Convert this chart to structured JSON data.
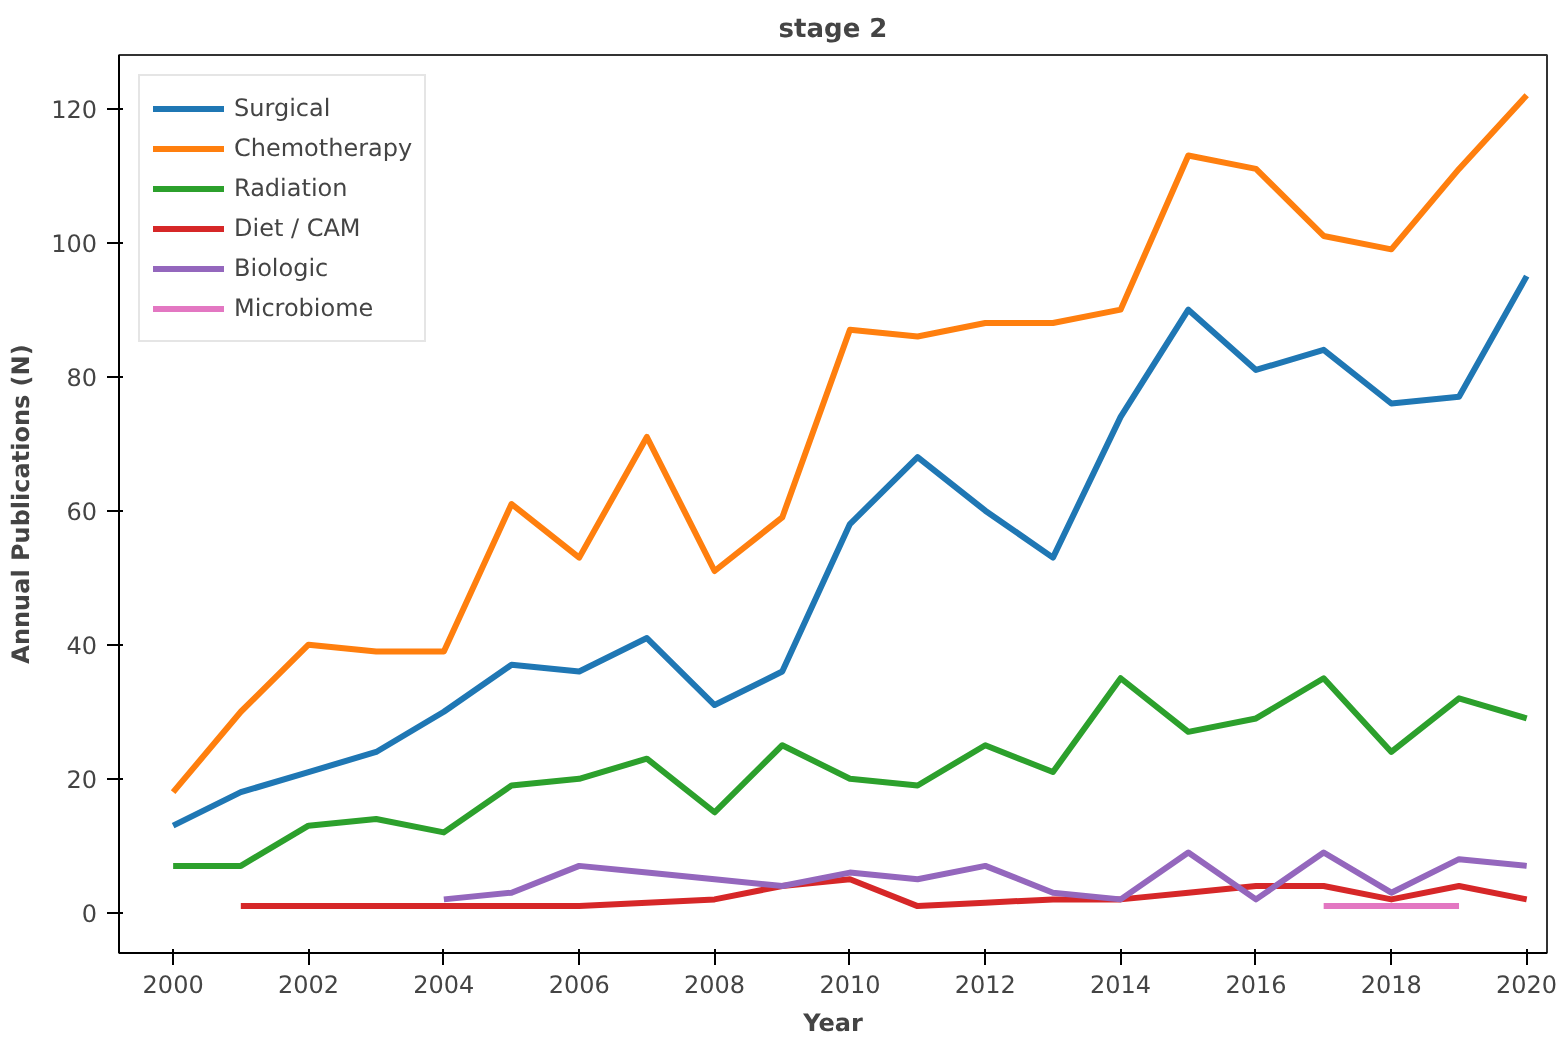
{
  "chart_data": {
    "type": "line",
    "title": "stage 2",
    "xlabel": "Year",
    "ylabel": "Annual Publications (N)",
    "x": [
      2000,
      2001,
      2002,
      2003,
      2004,
      2005,
      2006,
      2007,
      2008,
      2009,
      2010,
      2011,
      2012,
      2013,
      2014,
      2015,
      2016,
      2017,
      2018,
      2019,
      2020
    ],
    "series": [
      {
        "name": "Surgical",
        "color": "#1f77b4",
        "values": [
          13,
          18,
          21,
          24,
          30,
          37,
          36,
          41,
          31,
          36,
          58,
          68,
          60,
          53,
          74,
          90,
          81,
          84,
          76,
          77,
          95
        ]
      },
      {
        "name": "Chemotherapy",
        "color": "#ff7f0e",
        "values": [
          18,
          30,
          40,
          39,
          39,
          61,
          53,
          71,
          51,
          59,
          87,
          86,
          88,
          88,
          90,
          113,
          111,
          101,
          99,
          111,
          122
        ]
      },
      {
        "name": "Radiation",
        "color": "#2ca02c",
        "values": [
          7,
          7,
          13,
          14,
          12,
          19,
          20,
          23,
          15,
          25,
          20,
          19,
          25,
          21,
          35,
          27,
          29,
          35,
          24,
          32,
          29
        ]
      },
      {
        "name": "Diet / CAM",
        "color": "#d62728",
        "values": [
          null,
          1,
          1,
          1,
          1,
          1,
          1,
          1.5,
          2,
          4,
          5,
          1,
          1.5,
          2,
          2,
          3,
          4,
          4,
          2,
          4,
          2
        ]
      },
      {
        "name": "Biologic",
        "color": "#9467bd",
        "values": [
          null,
          null,
          null,
          null,
          2,
          3,
          7,
          6,
          5,
          4,
          6,
          5,
          7,
          3,
          2,
          9,
          2,
          9,
          3,
          8,
          7
        ]
      },
      {
        "name": "Microbiome",
        "color": "#e377c2",
        "values": [
          null,
          null,
          null,
          null,
          null,
          null,
          null,
          null,
          null,
          null,
          null,
          null,
          null,
          null,
          null,
          null,
          null,
          1,
          1,
          1,
          null
        ]
      }
    ],
    "xlim": [
      1999.2,
      2020.3
    ],
    "ylim": [
      -6,
      128
    ],
    "xticks": [
      2000,
      2002,
      2004,
      2006,
      2008,
      2010,
      2012,
      2014,
      2016,
      2018,
      2020
    ],
    "yticks": [
      0,
      20,
      40,
      60,
      80,
      100,
      120
    ],
    "grid": false,
    "legend": "top left",
    "line_style": "solid"
  }
}
